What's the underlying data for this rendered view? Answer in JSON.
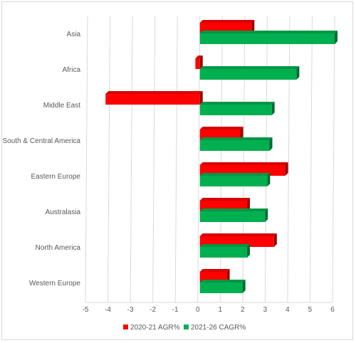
{
  "chart_data": {
    "type": "bar",
    "orientation": "horizontal",
    "title": "",
    "xlabel": "",
    "ylabel": "",
    "categories": [
      "Asia",
      "Africa",
      "Middle East",
      "South & Central America",
      "Eastern Europe",
      "Australasia",
      "North America",
      "Western Europe"
    ],
    "series": [
      {
        "name": "2020-21 AGR%",
        "color": "#ff0000",
        "values": [
          2.3,
          -0.2,
          -4.2,
          1.8,
          3.8,
          2.1,
          3.3,
          1.2
        ]
      },
      {
        "name": "2021-26 CAGR%",
        "color": "#00b050",
        "values": [
          6.0,
          4.3,
          3.2,
          3.1,
          3.0,
          2.9,
          2.1,
          1.9
        ]
      }
    ],
    "xlim": [
      -5,
      6
    ],
    "xticks": [
      "-5",
      "-4",
      "-3",
      "-2",
      "-1",
      "0",
      "1",
      "2",
      "3",
      "4",
      "5",
      "6"
    ],
    "grid": true,
    "legend_position": "bottom"
  }
}
